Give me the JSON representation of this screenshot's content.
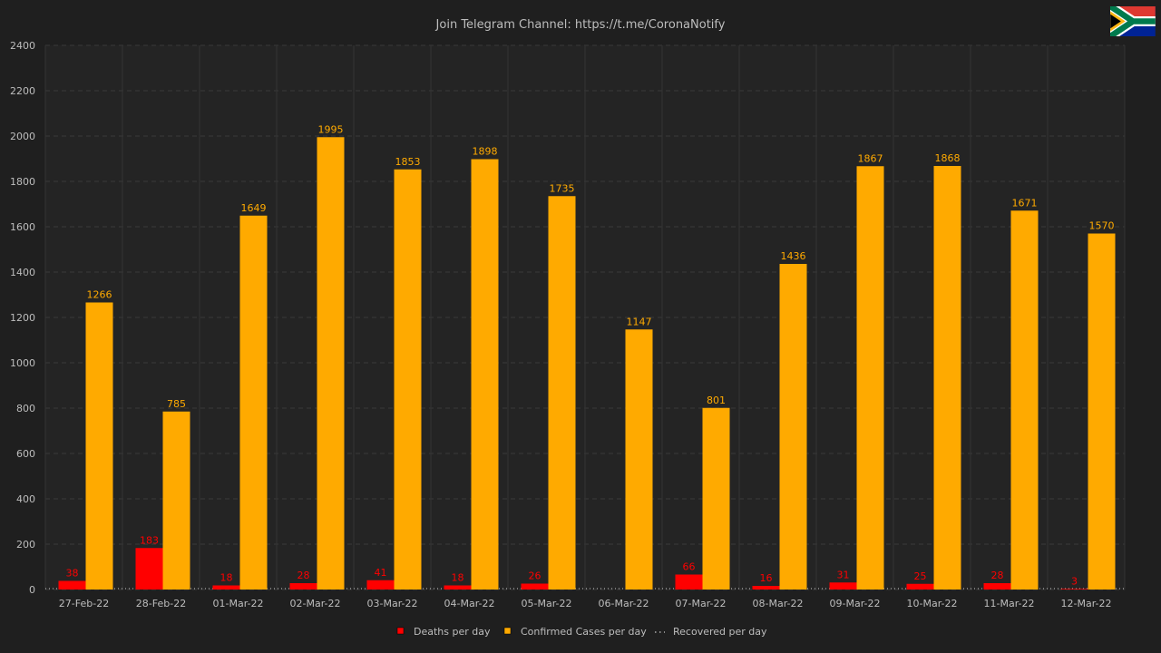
{
  "title": "Join Telegram Channel: https://t.me/CoronaNotify",
  "flag_icon": "south-africa-flag-icon",
  "colors": {
    "background": "#1f1f1f",
    "plot_background": "#242424",
    "grid": "#3a3a3a",
    "text": "#bdbdbd",
    "deaths": "#ff0000",
    "confirmed": "#ffaa00",
    "recovered": "#aaaaaa"
  },
  "chart_data": {
    "type": "bar",
    "title": "Join Telegram Channel: https://t.me/CoronaNotify",
    "xlabel": "",
    "ylabel": "",
    "ylim": [
      0,
      2400
    ],
    "yticks": [
      0,
      200,
      400,
      600,
      800,
      1000,
      1200,
      1400,
      1600,
      1800,
      2000,
      2200,
      2400
    ],
    "grid": true,
    "legend_position": "bottom-center",
    "categories": [
      "27-Feb-22",
      "28-Feb-22",
      "01-Mar-22",
      "02-Mar-22",
      "03-Mar-22",
      "04-Mar-22",
      "05-Mar-22",
      "06-Mar-22",
      "07-Mar-22",
      "08-Mar-22",
      "09-Mar-22",
      "10-Mar-22",
      "11-Mar-22",
      "12-Mar-22"
    ],
    "series": [
      {
        "name": "Deaths per day",
        "color": "#ff0000",
        "values": [
          38,
          183,
          18,
          28,
          41,
          18,
          26,
          0,
          66,
          16,
          31,
          25,
          28,
          3
        ],
        "labels": [
          "38",
          "183",
          "18",
          "28",
          "41",
          "18",
          "26",
          "",
          "66",
          "16",
          "31",
          "25",
          "28",
          "3"
        ]
      },
      {
        "name": "Confirmed Cases per day",
        "color": "#ffaa00",
        "values": [
          1266,
          785,
          1649,
          1995,
          1853,
          1898,
          1735,
          1147,
          801,
          1436,
          1867,
          1868,
          1671,
          1570
        ],
        "labels": [
          "1266",
          "785",
          "1649",
          "1995",
          "1853",
          "1898",
          "1735",
          "1147",
          "801",
          "1436",
          "1867",
          "1868",
          "1671",
          "1570"
        ]
      },
      {
        "name": "Recovered per day",
        "color": "#aaaaaa",
        "style": "dotted-line",
        "values": [
          0,
          0,
          0,
          0,
          0,
          0,
          0,
          0,
          0,
          0,
          0,
          0,
          0,
          0
        ]
      }
    ]
  }
}
